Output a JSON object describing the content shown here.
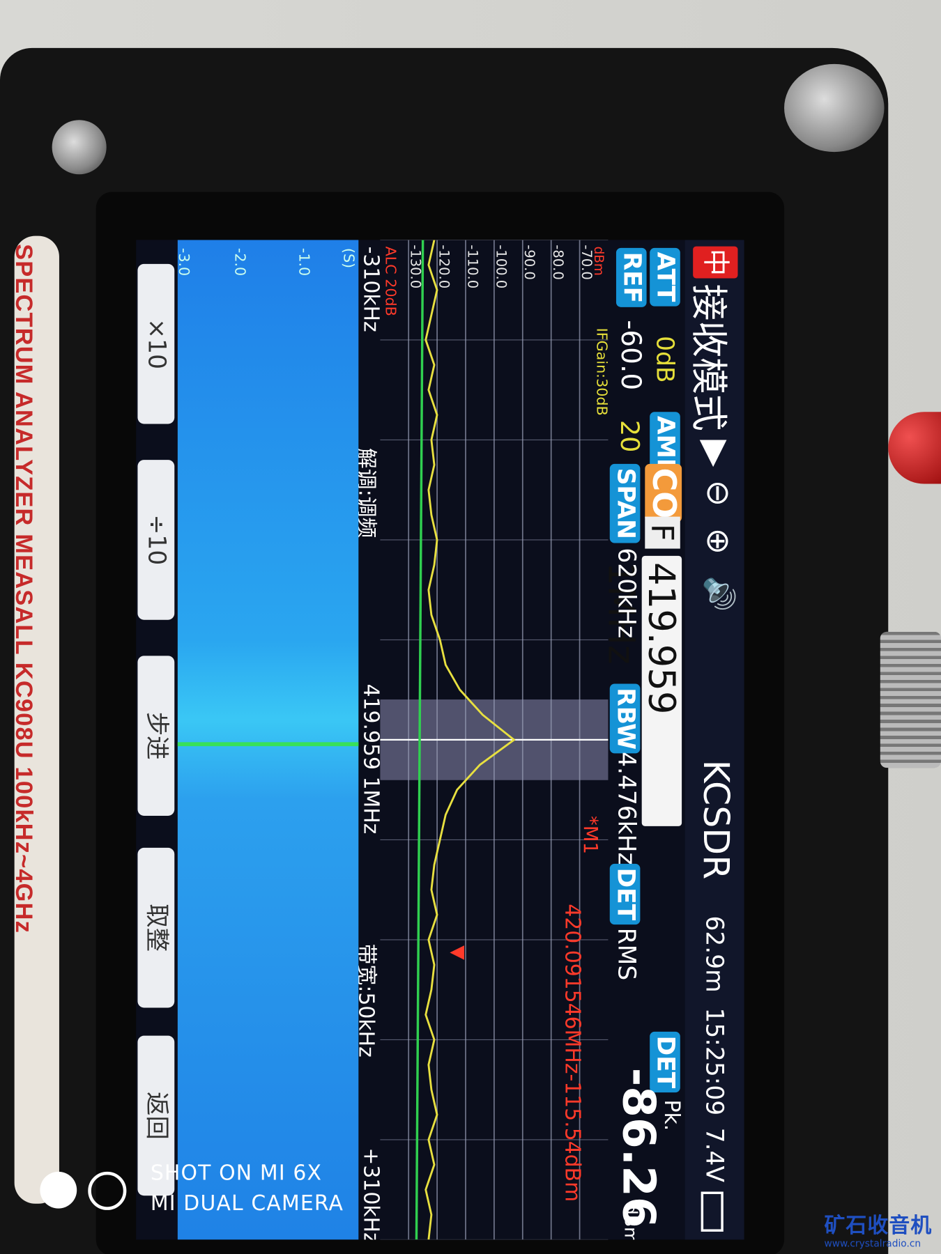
{
  "device": {
    "label": "SPECTRUM ANALYZER   MEASALL   KC908U 100kHz~4GHz"
  },
  "status": {
    "mode_icon": "china-flag-icon",
    "mode": "接收模式",
    "brand": "KCSDR",
    "memory": "62.9m",
    "time": "15:25:09",
    "battery": "7.4V"
  },
  "settings": {
    "att_label": "ATT",
    "att_value": "0dB",
    "amp_label": "AMP",
    "amp_value": "20",
    "ref_label": "REF",
    "ref_value": "-60.0",
    "ifgain": "IFGain:30dB",
    "co_label": "CO",
    "f_label": "F",
    "center_freq": "419.959 1MHz",
    "span_label": "SPAN",
    "span_value": "620kHz",
    "rbw_label": "RBW",
    "rbw_value": "4.476kHz",
    "det_label": "DET",
    "det_value": "RMS",
    "det2_label": "DET",
    "det2_value": "Pk.",
    "reading": "-86.26",
    "reading_unit": "dBm"
  },
  "marker": {
    "name": "*M1",
    "readout": "420.091546MHz-115.54dBm"
  },
  "graph": {
    "unit_label": "dBm",
    "alc": "ALC 20dB",
    "left_freq": "-310kHz",
    "demod": "解调:调频",
    "center": "419.959 1MHz",
    "bandwidth": "带宽:50kHz",
    "right_freq": "+310kHz"
  },
  "waterfall": {
    "labels": [
      "(S)",
      "-1.0",
      "-2.0",
      "-3.0"
    ]
  },
  "buttons": [
    "×10",
    "÷10",
    "步进",
    "取整",
    "返回"
  ],
  "watermark": {
    "line1": "SHOT ON MI 6X",
    "line2": "MI DUAL CAMERA",
    "site_name": "矿石收音机",
    "site_url": "www.crystalradio.cn"
  },
  "chart_data": {
    "type": "line",
    "xlabel": "",
    "ylabel": "dBm",
    "xlim": [
      -310,
      310
    ],
    "ylim": [
      -140,
      -60
    ],
    "y_ticks": [
      -70,
      -80,
      -90,
      -100,
      -110,
      -120,
      -130
    ],
    "y_tick_labels": [
      "-70.0",
      "-80.0",
      "-90.0",
      "-100.0",
      "-110.0",
      "-120.0",
      "-130.0"
    ],
    "grid": true,
    "x": [
      -310,
      -294.5,
      -279,
      -263.5,
      -248,
      -232.5,
      -217,
      -201.5,
      -186,
      -170.5,
      -155,
      -139.5,
      -124,
      -108.5,
      -93,
      -77.5,
      -62,
      -46.5,
      -31,
      -15.5,
      0,
      15.5,
      31,
      46.5,
      62,
      77.5,
      93,
      108.5,
      124,
      139.5,
      155,
      170.5,
      186,
      201.5,
      217,
      232.5,
      248,
      263.5,
      279,
      294.5,
      310
    ],
    "values": [
      -121,
      -123,
      -120,
      -122,
      -124,
      -121,
      -123,
      -120,
      -122,
      -121,
      -123,
      -122,
      -120,
      -121,
      -123,
      -122,
      -119,
      -117,
      -112,
      -104,
      -93,
      -105,
      -113,
      -117,
      -119,
      -121,
      -122,
      -120,
      -123,
      -121,
      -122,
      -124,
      -121,
      -123,
      -122,
      -120,
      -123,
      -121,
      -124,
      -122,
      -123
    ],
    "reference_line_dbm": -125,
    "marker_x": 132,
    "marker_y": -115.54,
    "bandwidth_band": [
      -25,
      25
    ],
    "colors": {
      "trace": "#e8e040",
      "reference_line": "#30d050",
      "band": "#6a6a88",
      "marker": "#ff3a2a"
    }
  }
}
